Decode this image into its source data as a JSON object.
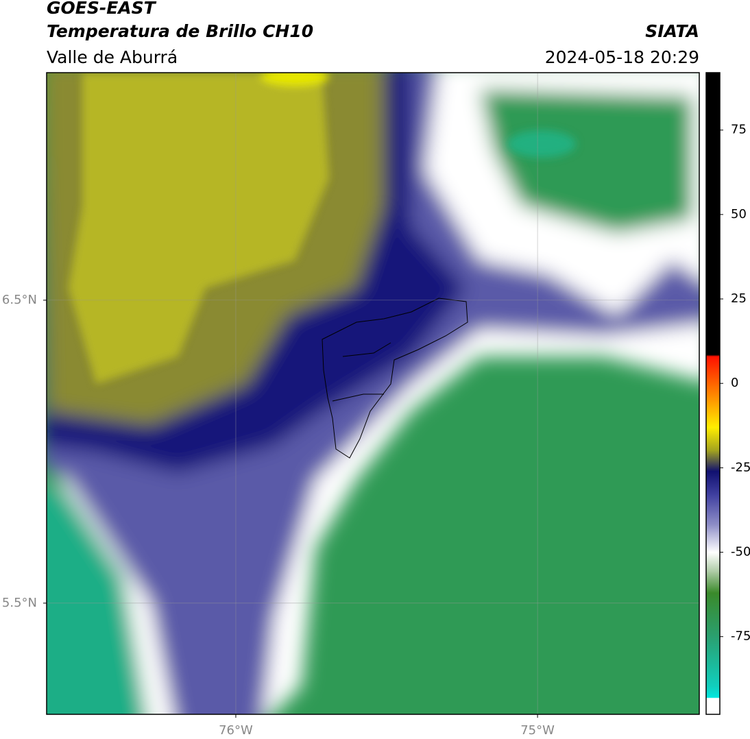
{
  "header": {
    "title": "GOES-EAST",
    "subtitle": "Temperatura de Brillo CH10",
    "region": "Valle de Aburrá",
    "source": "SIATA",
    "timestamp": "2024-05-18 20:29"
  },
  "map": {
    "xlim": [
      -76.627,
      -74.464
    ],
    "ylim": [
      5.133,
      7.251
    ],
    "xticks": [
      {
        "value": -76,
        "label": "76°W"
      },
      {
        "value": -75,
        "label": "75°W"
      }
    ],
    "yticks": [
      {
        "value": 6.5,
        "label": "6.5°N"
      },
      {
        "value": 5.5,
        "label": "5.5°N"
      }
    ],
    "grid": true
  },
  "colorbar": {
    "lim": [
      -98,
      92
    ],
    "ticks": [
      75,
      50,
      25,
      0,
      -25,
      -50,
      -75
    ],
    "stops": [
      {
        "value": 92,
        "color": "#000000"
      },
      {
        "value": 8.5,
        "color": "#000000"
      },
      {
        "value": 8,
        "color": "#ff1000"
      },
      {
        "value": -5,
        "color": "#ff9900"
      },
      {
        "value": -13,
        "color": "#ffee00"
      },
      {
        "value": -20,
        "color": "#a0a020"
      },
      {
        "value": -26,
        "color": "#101070"
      },
      {
        "value": -33,
        "color": "#4040a0"
      },
      {
        "value": -42,
        "color": "#9090c8"
      },
      {
        "value": -50,
        "color": "#ffffff"
      },
      {
        "value": -56,
        "color": "#a8c8a0"
      },
      {
        "value": -62,
        "color": "#3a8a2a"
      },
      {
        "value": -75,
        "color": "#2aa070"
      },
      {
        "value": -90,
        "color": "#10d0c0"
      },
      {
        "value": -93,
        "color": "#00e8e0"
      },
      {
        "value": -93.2,
        "color": "#ffffff"
      },
      {
        "value": -98,
        "color": "#ffffff"
      }
    ]
  }
}
